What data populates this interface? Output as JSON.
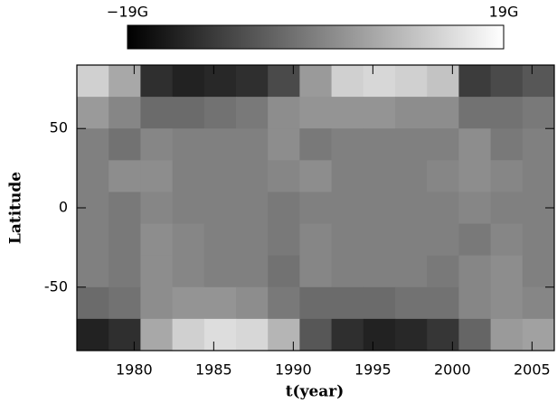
{
  "chart_data": {
    "type": "heatmap",
    "xlabel": "t(year)",
    "ylabel": "Latitude",
    "x_edges": [
      1976.4,
      1978.4,
      1980.4,
      1982.4,
      1984.4,
      1986.4,
      1988.4,
      1990.4,
      1992.4,
      1994.4,
      1996.4,
      1998.4,
      2000.4,
      2002.4,
      2004.4,
      2006.4
    ],
    "y_edges": [
      90,
      70,
      50,
      30,
      10,
      -10,
      -30,
      -50,
      -70,
      -90
    ],
    "values": [
      [
        12,
        6,
        -12,
        -14,
        -13,
        -12,
        -8,
        4,
        12,
        13,
        12,
        10,
        -10,
        -8,
        -6
      ],
      [
        4,
        1,
        -3,
        -3,
        -2,
        -1,
        2,
        3,
        3,
        3,
        2,
        2,
        -2,
        -2,
        -1
      ],
      [
        0,
        -2,
        1,
        0,
        0,
        0,
        2,
        -1,
        0,
        0,
        0,
        0,
        2,
        -1,
        0
      ],
      [
        0,
        2,
        2,
        0,
        0,
        0,
        1,
        2,
        0,
        0,
        0,
        1,
        2,
        1,
        0
      ],
      [
        0,
        -1,
        1,
        0,
        0,
        0,
        -1,
        0,
        0,
        0,
        0,
        0,
        1,
        0,
        0
      ],
      [
        0,
        -1,
        2,
        1,
        0,
        0,
        -1,
        1,
        0,
        0,
        0,
        0,
        -1,
        1,
        0
      ],
      [
        0,
        -1,
        2,
        1,
        0,
        0,
        -2,
        1,
        0,
        0,
        0,
        -1,
        1,
        2,
        0
      ],
      [
        -3,
        -2,
        2,
        3,
        3,
        2,
        -1,
        -3,
        -3,
        -3,
        -2,
        -2,
        1,
        2,
        1
      ],
      [
        -14,
        -12,
        6,
        12,
        14,
        13,
        8,
        -6,
        -12,
        -14,
        -13,
        -11,
        -4,
        4,
        5
      ]
    ],
    "xlim": [
      1976.4,
      2006.4
    ],
    "ylim": [
      -90,
      90
    ],
    "xticks": [
      1980,
      1985,
      1990,
      1995,
      2000,
      2005
    ],
    "yticks": [
      -50,
      0,
      50
    ],
    "clim": [
      -19,
      19
    ],
    "colormap": [
      "#000000",
      "#ffffff"
    ],
    "colorbar_ticks": [
      {
        "value": -19,
        "label": "−19G"
      },
      {
        "value": 19,
        "label": "19G"
      }
    ]
  }
}
